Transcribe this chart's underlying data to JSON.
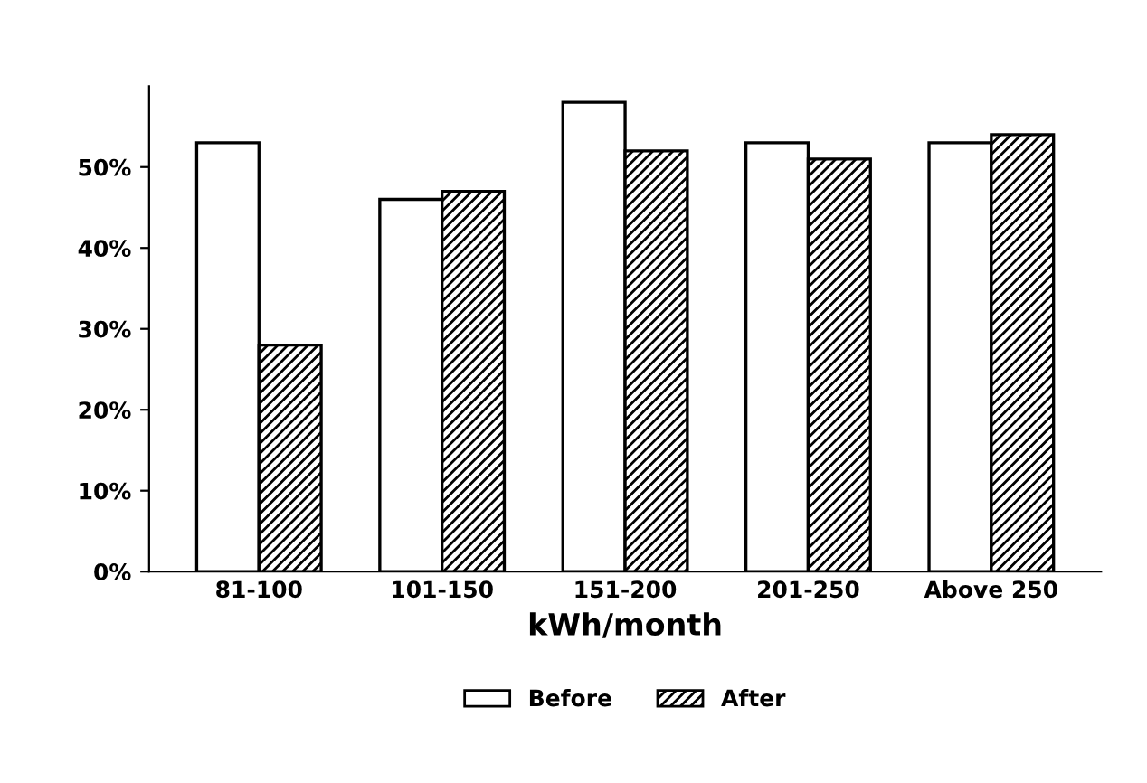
{
  "chart_data": {
    "type": "bar",
    "xlabel": "kWh/month",
    "categories": [
      "81-100",
      "101-150",
      "151-200",
      "201-250",
      "Above 250"
    ],
    "series": [
      {
        "name": "Before",
        "color": "#ffffff",
        "values": [
          53,
          46,
          58,
          53,
          53
        ]
      },
      {
        "name": "After",
        "color": "#000000",
        "values": [
          28,
          47,
          52,
          51,
          54
        ]
      }
    ],
    "ylim": [
      0,
      60
    ],
    "yticks": [
      {
        "value": 0,
        "label": "0%"
      },
      {
        "value": 10,
        "label": "10%"
      },
      {
        "value": 20,
        "label": "20%"
      },
      {
        "value": 30,
        "label": "30%"
      },
      {
        "value": 40,
        "label": "40%"
      },
      {
        "value": 50,
        "label": "50%"
      }
    ],
    "grid": false,
    "legend": "bottom"
  }
}
